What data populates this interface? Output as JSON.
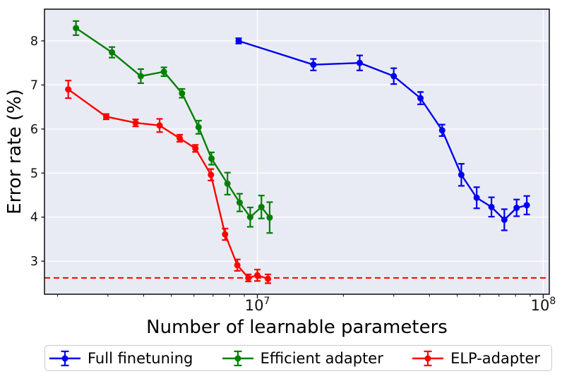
{
  "chart_data": {
    "type": "line",
    "title": "",
    "xlabel": "Number of learnable parameters",
    "ylabel": "Error rate (%)",
    "x_scale": "log",
    "xlim": [
      1800000,
      105000000
    ],
    "ylim": [
      2.25,
      8.72
    ],
    "grid": {
      "horizontal": true,
      "vertical_major": true
    },
    "x_ticks": [
      {
        "value": 10000000,
        "mantissa": "10",
        "exponent": "7"
      },
      {
        "value": 100000000,
        "mantissa": "10",
        "exponent": "8"
      }
    ],
    "y_ticks": [
      3,
      4,
      5,
      6,
      7,
      8
    ],
    "baseline": {
      "value": 2.62,
      "style": "dashed",
      "color": "#ff0000"
    },
    "legend_position": "bottom",
    "colors": {
      "plot_bg": "#e9ebf4",
      "grid": "#ffffff",
      "spine": "#1a1a1a",
      "tick_label": "#111111"
    },
    "series": [
      {
        "name": "Full finetuning",
        "color": "#0000f0",
        "x": [
          8600000.0,
          15700000.0,
          22800000.0,
          30000000.0,
          37200000.0,
          44300000.0,
          51700000.0,
          58500000.0,
          65900000.0,
          73100000.0,
          80700000.0,
          87600000.0
        ],
        "y": [
          8.0,
          7.46,
          7.5,
          7.2,
          6.7,
          5.97,
          4.96,
          4.44,
          4.23,
          3.94,
          4.21,
          4.27
        ],
        "yerr": [
          0.06,
          0.13,
          0.17,
          0.18,
          0.14,
          0.13,
          0.25,
          0.24,
          0.22,
          0.24,
          0.19,
          0.21
        ]
      },
      {
        "name": "Efficient adapter",
        "color": "#008000",
        "x": [
          2320000.0,
          3100000.0,
          3910000.0,
          4710000.0,
          5450000.0,
          6230000.0,
          6910000.0,
          7860000.0,
          8670000.0,
          9440000.0,
          10330000.0,
          11040000.0
        ],
        "y": [
          8.29,
          7.74,
          7.2,
          7.3,
          6.81,
          6.04,
          5.33,
          4.76,
          4.33,
          4.0,
          4.23,
          3.99
        ],
        "yerr": [
          0.16,
          0.12,
          0.16,
          0.1,
          0.1,
          0.15,
          0.14,
          0.25,
          0.2,
          0.22,
          0.26,
          0.35
        ]
      },
      {
        "name": "ELP-adapter",
        "color": "#ff0000",
        "x": [
          2180000.0,
          2960000.0,
          3750000.0,
          4550000.0,
          5350000.0,
          6070000.0,
          6880000.0,
          7710000.0,
          8510000.0,
          9300000.0,
          10000000.0,
          10890000.0
        ],
        "y": [
          6.9,
          6.28,
          6.14,
          6.08,
          5.79,
          5.56,
          4.96,
          3.61,
          2.91,
          2.62,
          2.68,
          2.6
        ],
        "yerr": [
          0.2,
          0.06,
          0.08,
          0.15,
          0.08,
          0.08,
          0.13,
          0.13,
          0.13,
          0.08,
          0.13,
          0.1
        ]
      }
    ]
  }
}
